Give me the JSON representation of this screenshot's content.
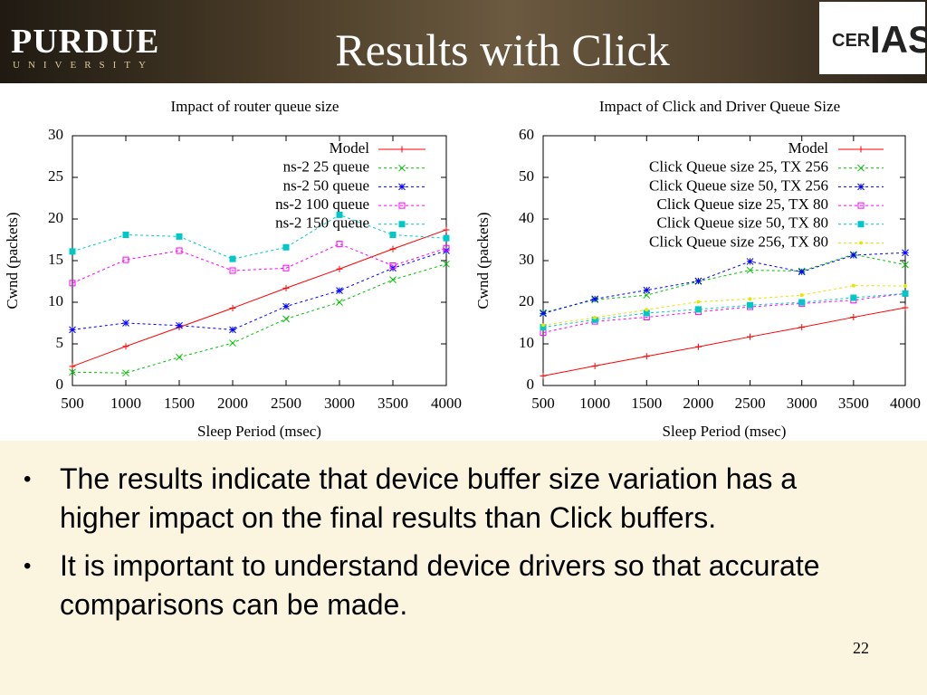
{
  "header": {
    "logo_name": "PURDUE",
    "logo_sub": "UNIVERSITY",
    "title": "Results with Click",
    "badge_left": "CER",
    "badge_right": "IAS"
  },
  "chart_data": [
    {
      "type": "line",
      "title": "Impact of router queue size",
      "x_label": "Sleep Period (msec)",
      "y_label": "Cwnd (packets)",
      "x": [
        500,
        1000,
        1500,
        2000,
        2500,
        3000,
        3500,
        4000
      ],
      "xlim": [
        500,
        4000
      ],
      "xticks": [
        500,
        1000,
        1500,
        2000,
        2500,
        3000,
        3500,
        4000
      ],
      "ylim": [
        0,
        30
      ],
      "yticks": [
        0,
        5,
        10,
        15,
        20,
        25,
        30
      ],
      "legend": "top-right",
      "series": [
        {
          "name": "Model",
          "color": "#ff0000",
          "marker": "plus",
          "dashed": false,
          "values": [
            2.3,
            4.7,
            7.0,
            9.3,
            11.7,
            14.0,
            16.4,
            18.7
          ]
        },
        {
          "name": "ns-2 25 queue",
          "color": "#00c000",
          "marker": "cross",
          "dashed": true,
          "values": [
            1.6,
            1.5,
            3.4,
            5.1,
            8.0,
            10.0,
            12.7,
            14.6
          ]
        },
        {
          "name": "ns-2 50 queue",
          "color": "#0000ff",
          "marker": "star",
          "dashed": true,
          "values": [
            6.7,
            7.5,
            7.2,
            6.7,
            9.5,
            11.4,
            14.1,
            16.2
          ]
        },
        {
          "name": "ns-2 100 queue",
          "color": "#ff00ff",
          "marker": "square",
          "dashed": true,
          "values": [
            12.3,
            15.1,
            16.2,
            13.8,
            14.1,
            17.0,
            14.4,
            16.5
          ]
        },
        {
          "name": "ns-2 150 queue",
          "color": "#00c8c8",
          "marker": "filled-square",
          "dashed": true,
          "values": [
            16.1,
            18.1,
            17.9,
            15.2,
            16.6,
            20.5,
            18.1,
            17.7
          ]
        }
      ]
    },
    {
      "type": "line",
      "title": "Impact of Click and Driver Queue Size",
      "x_label": "Sleep Period (msec)",
      "y_label": "Cwnd (packets)",
      "x": [
        500,
        1000,
        1500,
        2000,
        2500,
        3000,
        3500,
        4000
      ],
      "xlim": [
        500,
        4000
      ],
      "xticks": [
        500,
        1000,
        1500,
        2000,
        2500,
        3000,
        3500,
        4000
      ],
      "ylim": [
        0,
        60
      ],
      "yticks": [
        0,
        10,
        20,
        30,
        40,
        50,
        60
      ],
      "legend": "top-right",
      "series": [
        {
          "name": "Model",
          "color": "#ff0000",
          "marker": "plus",
          "dashed": false,
          "values": [
            2.3,
            4.7,
            7.0,
            9.3,
            11.7,
            14.0,
            16.4,
            18.7
          ]
        },
        {
          "name": "Click Queue size 25, TX 256",
          "color": "#00c000",
          "marker": "cross",
          "dashed": true,
          "values": [
            17.5,
            20.6,
            21.7,
            25.0,
            27.7,
            27.5,
            31.5,
            29.0
          ]
        },
        {
          "name": "Click Queue size 50, TX 256",
          "color": "#0000ff",
          "marker": "star",
          "dashed": true,
          "values": [
            17.3,
            20.8,
            22.9,
            25.1,
            29.8,
            27.3,
            31.3,
            31.9
          ]
        },
        {
          "name": "Click Queue size 25, TX 80",
          "color": "#ff00ff",
          "marker": "square",
          "dashed": true,
          "values": [
            12.7,
            15.4,
            16.4,
            17.7,
            18.9,
            19.7,
            20.5,
            22.1
          ]
        },
        {
          "name": "Click Queue size 50, TX 80",
          "color": "#00c8c8",
          "marker": "filled-square",
          "dashed": true,
          "values": [
            14.0,
            15.8,
            17.4,
            18.3,
            19.3,
            20.0,
            21.1,
            22.1
          ]
        },
        {
          "name": "Click Queue size 256, TX 80",
          "color": "#e6e600",
          "marker": "dot",
          "dashed": true,
          "values": [
            14.5,
            16.3,
            18.2,
            20.1,
            20.8,
            21.7,
            24.0,
            23.9
          ]
        }
      ]
    }
  ],
  "bullets": [
    "The results indicate that device buffer size variation has a higher impact on the final results than Click buffers.",
    "It is important to understand device drivers so that accurate comparisons can be made."
  ],
  "page_number": "22"
}
